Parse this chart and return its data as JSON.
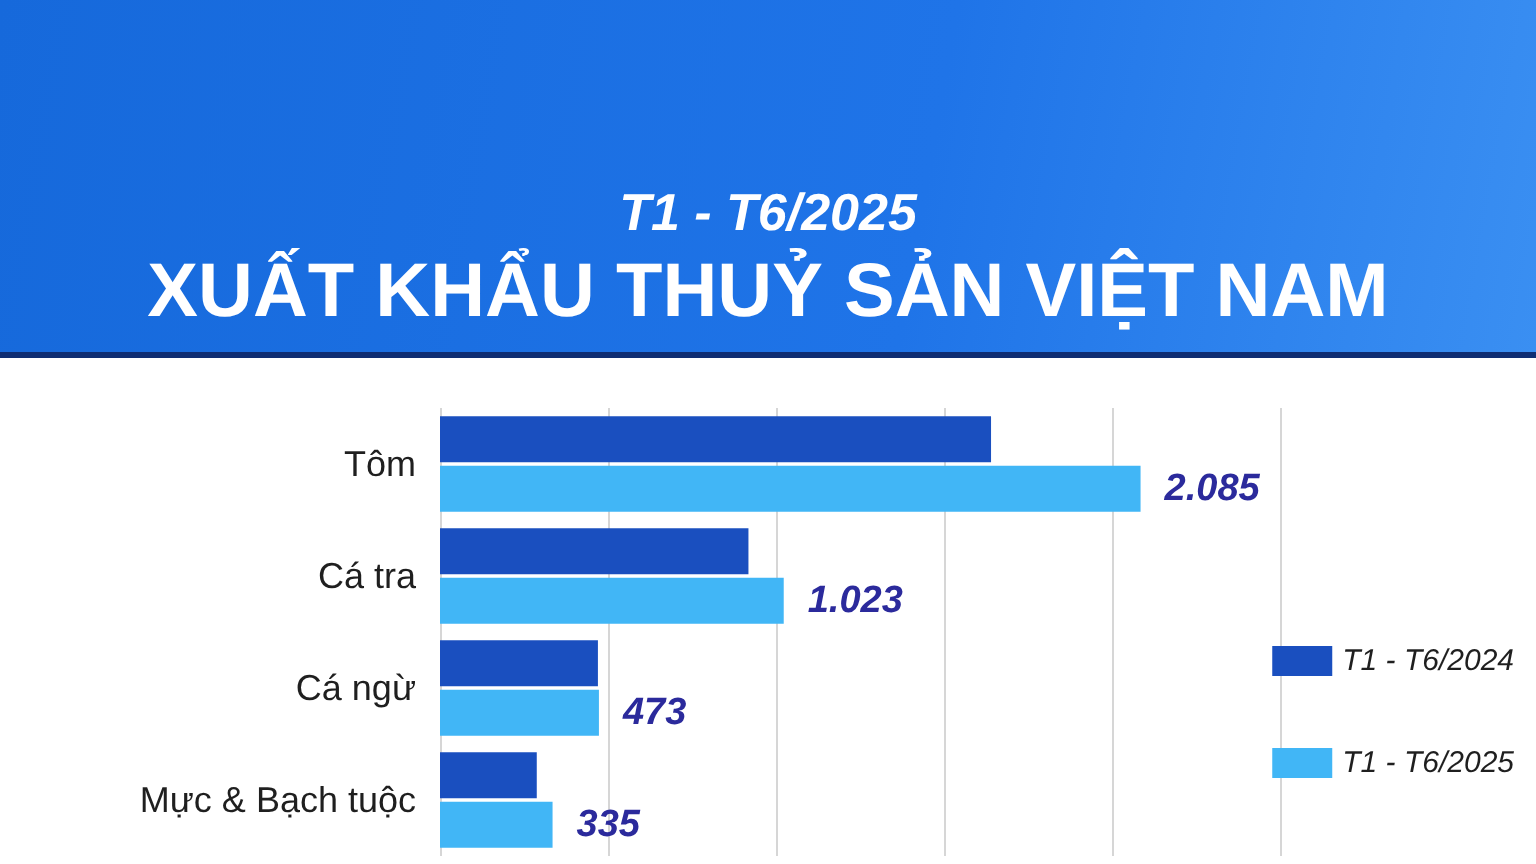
{
  "chart_data": {
    "type": "bar",
    "orientation": "horizontal",
    "title": "XUẤT KHẨU THUỶ SẢN VIỆT NAM",
    "subtitle": "T1 - T6/2025",
    "categories": [
      "Tôm",
      "Cá tra",
      "Cá ngừ",
      "Mực & Bạch tuộc"
    ],
    "series": [
      {
        "name": "T1 - T6/2024",
        "color": "#1a4fbf",
        "values": [
          1640,
          918,
          470,
          288
        ]
      },
      {
        "name": "T1 - T6/2025",
        "color": "#41b6f6",
        "values": [
          2085,
          1023,
          473,
          335
        ],
        "value_labels": [
          "2.085",
          "1.023",
          "473",
          "335"
        ]
      }
    ],
    "xlim": [
      0,
      2500
    ],
    "xticks": [
      {
        "value": 0,
        "label": null
      },
      {
        "value": 500,
        "label": null
      },
      {
        "value": 1000,
        "label": null
      },
      {
        "value": 1500,
        "label": null
      },
      {
        "value": 2000,
        "label": null
      },
      {
        "value": 2500,
        "label": null
      }
    ],
    "grid": "x",
    "legend": "right",
    "tick_labels": "y"
  }
}
